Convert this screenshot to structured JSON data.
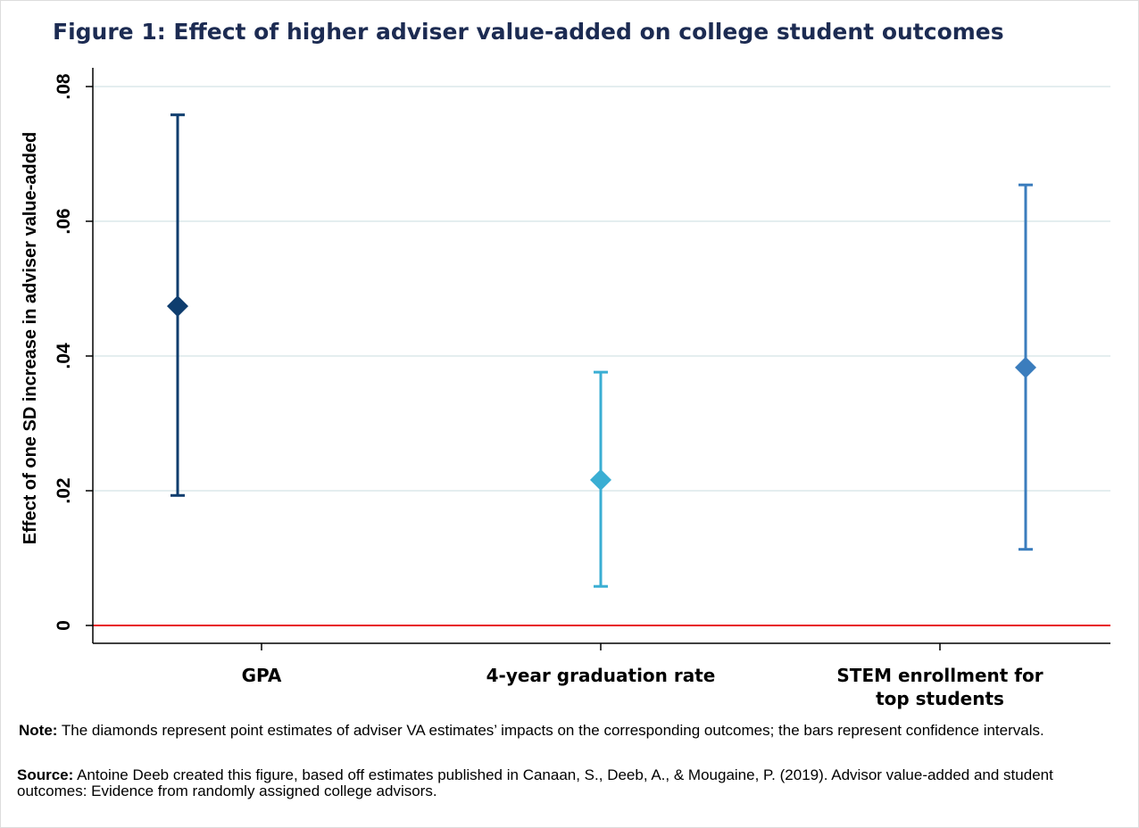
{
  "chart_data": {
    "type": "scatter",
    "title": "Figure 1: Effect of higher adviser value-added on college student outcomes",
    "ylabel": "Effect of one SD increase in adviser value-added",
    "xlabel": "",
    "ylim": [
      0,
      0.08
    ],
    "yticks": [
      {
        "value": 0,
        "label": "0"
      },
      {
        "value": 0.02,
        "label": ".02"
      },
      {
        "value": 0.04,
        "label": ".04"
      },
      {
        "value": 0.06,
        "label": ".06"
      },
      {
        "value": 0.08,
        "label": ".08"
      }
    ],
    "grid": true,
    "reference_line": {
      "value": 0,
      "color": "#e8141b"
    },
    "categories": [
      {
        "lines": [
          "GPA"
        ]
      },
      {
        "lines": [
          "4-year graduation rate"
        ]
      },
      {
        "lines": [
          "STEM enrollment for",
          "top students"
        ]
      }
    ],
    "series": [
      {
        "name": "GPA",
        "estimate": 0.0474,
        "ci_low": 0.0193,
        "ci_high": 0.0758,
        "color": "#0e3d6e"
      },
      {
        "name": "4-year graduation rate",
        "estimate": 0.0216,
        "ci_low": 0.0058,
        "ci_high": 0.0376,
        "color": "#3aaed3"
      },
      {
        "name": "STEM enrollment for top students",
        "estimate": 0.0383,
        "ci_low": 0.0113,
        "ci_high": 0.0654,
        "color": "#3b7dbd"
      }
    ]
  },
  "notes": {
    "note_label": "Note:",
    "note_text": " The diamonds represent point estimates of adviser VA estimates’ impacts on the corresponding outcomes; the bars represent confidence intervals.",
    "source_label": "Source:",
    "source_text": " Antoine Deeb created this figure, based off estimates published in Canaan, S., Deeb, A., & Mougaine, P. (2019). Advisor value-added and student outcomes: Evidence from randomly assigned college advisors."
  }
}
